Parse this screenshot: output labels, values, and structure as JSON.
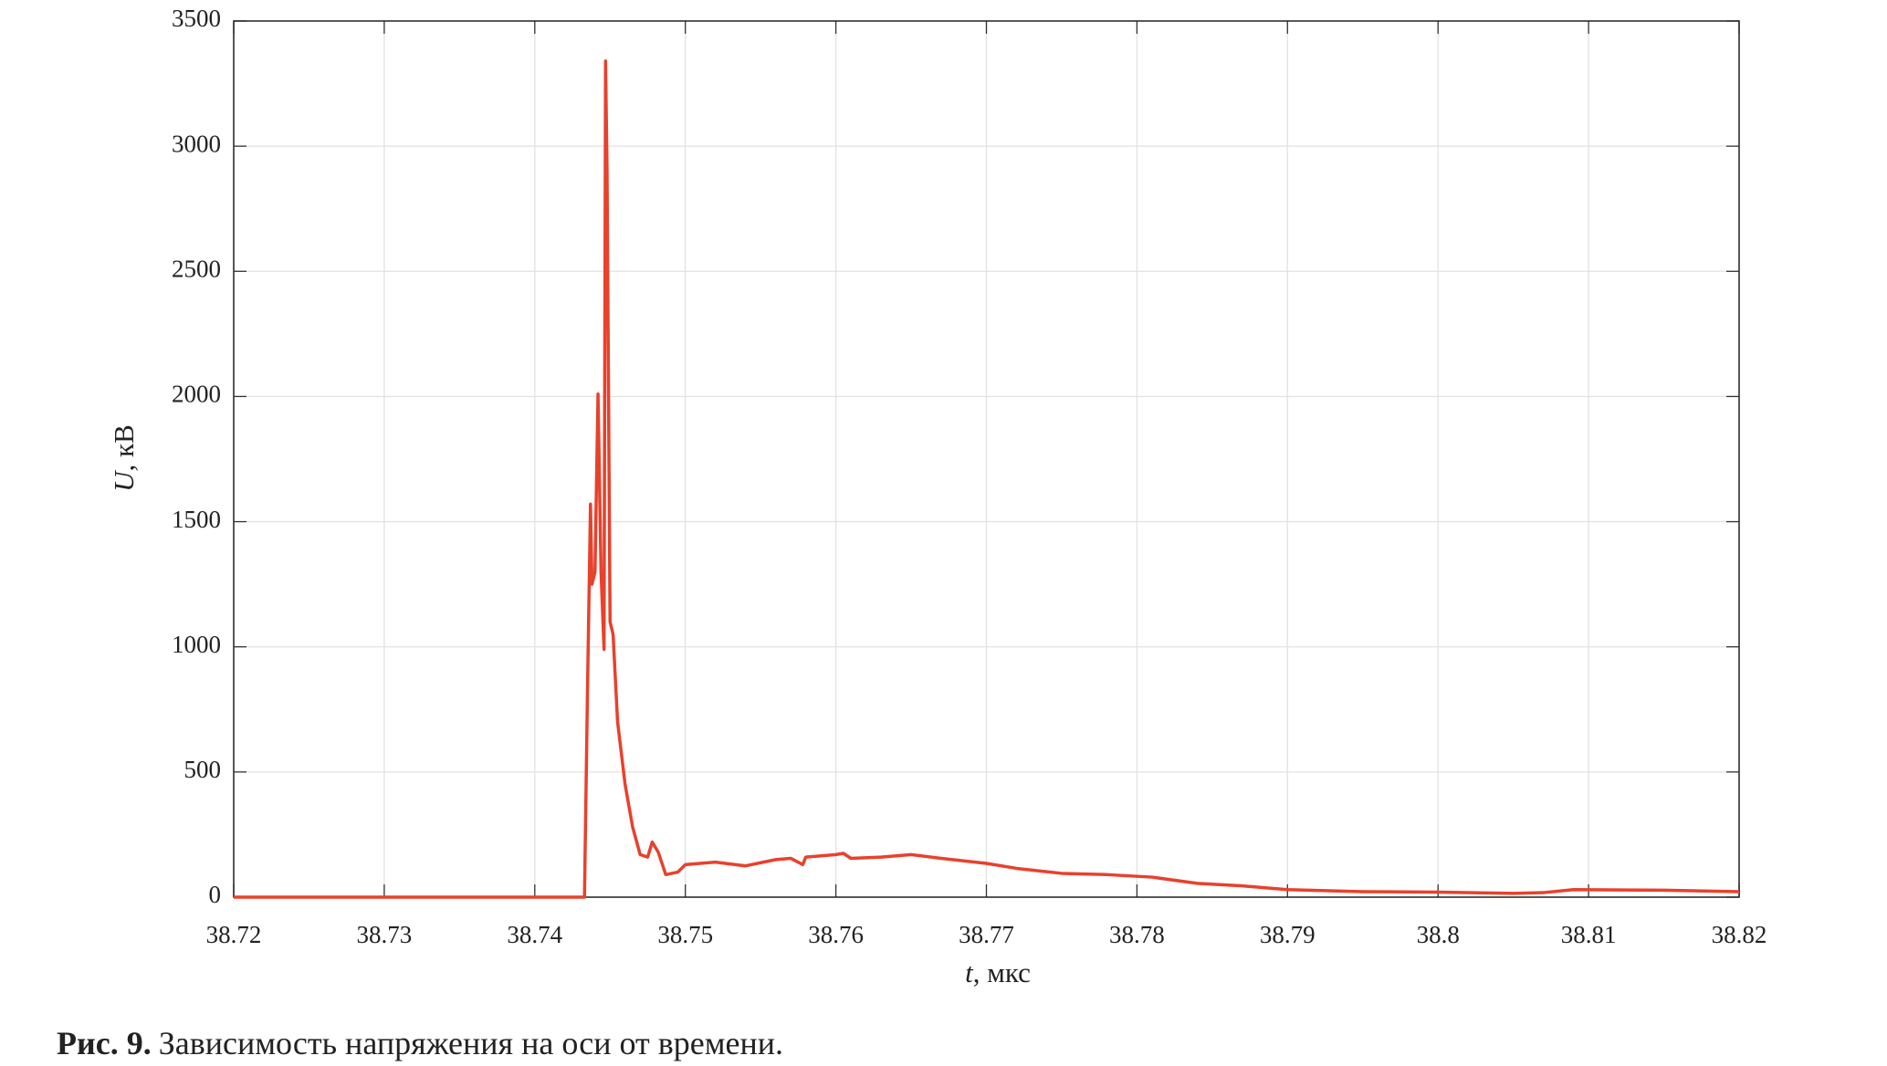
{
  "chart_data": {
    "type": "line",
    "x": [
      38.72,
      38.73,
      38.74,
      38.7433,
      38.7435,
      38.7437,
      38.7438,
      38.744,
      38.7442,
      38.7444,
      38.7446,
      38.7447,
      38.7448,
      38.745,
      38.7452,
      38.7455,
      38.746,
      38.7465,
      38.747,
      38.7475,
      38.7478,
      38.7482,
      38.7487,
      38.7495,
      38.75,
      38.752,
      38.754,
      38.756,
      38.757,
      38.7578,
      38.758,
      38.76,
      38.7605,
      38.761,
      38.763,
      38.765,
      38.767,
      38.77,
      38.772,
      38.775,
      38.778,
      38.781,
      38.784,
      38.787,
      38.79,
      38.795,
      38.8,
      38.805,
      38.807,
      38.809,
      38.815,
      38.82
    ],
    "series": [
      {
        "color": "#e8412c",
        "values": [
          0,
          0,
          0,
          0,
          820,
          1570,
          1250,
          1300,
          2010,
          1300,
          990,
          3340,
          2900,
          1100,
          1050,
          700,
          450,
          280,
          170,
          160,
          220,
          180,
          90,
          100,
          130,
          140,
          125,
          150,
          155,
          130,
          160,
          170,
          175,
          155,
          160,
          170,
          155,
          135,
          115,
          95,
          90,
          80,
          55,
          45,
          30,
          22,
          20,
          15,
          18,
          30,
          28,
          22
        ]
      }
    ],
    "xlim": [
      38.72,
      38.82
    ],
    "xticks": [
      38.72,
      38.73,
      38.74,
      38.75,
      38.76,
      38.77,
      38.78,
      38.79,
      38.8,
      38.81,
      38.82
    ],
    "ylim": [
      0,
      3500
    ],
    "yticks": [
      0,
      500,
      1000,
      1500,
      2000,
      2500,
      3000,
      3500
    ],
    "grid": true,
    "xlabel": {
      "symbol": "t",
      "unit": ", мкс"
    },
    "ylabel": {
      "symbol": "U",
      "unit": ", кВ"
    },
    "caption": {
      "label": "Рис. 9.",
      "text": "Зависимость напряжения на оси от времени."
    }
  }
}
